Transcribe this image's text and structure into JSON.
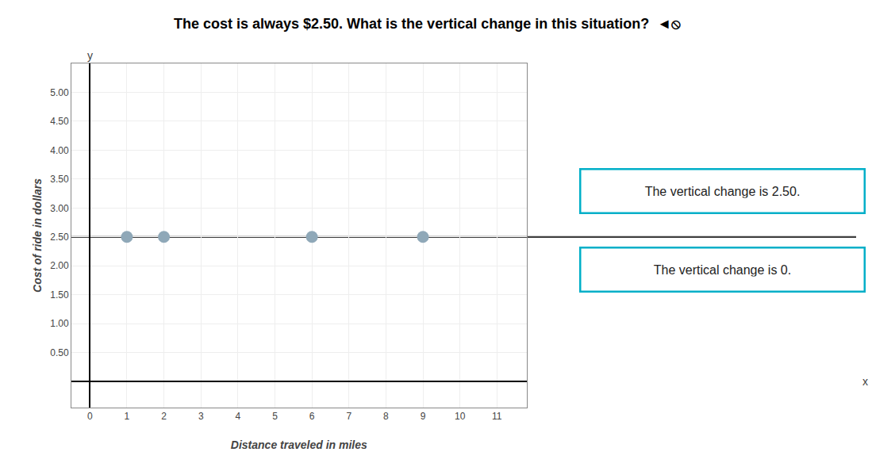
{
  "chart_data": {
    "type": "scatter",
    "title": "The cost is always $2.50. What is the vertical change in this situation?  ◄⦸",
    "x_label": "Distance traveled in miles",
    "y_label": "Cost of ride in dollars",
    "axis_letters": {
      "x": "x",
      "y": "y"
    },
    "x": [
      1,
      2,
      6,
      9
    ],
    "values": [
      2.5,
      2.5,
      2.5,
      2.5
    ],
    "color": "#8fa8b8",
    "marker": "circle",
    "hline": {
      "y": 2.5,
      "color": "#404040"
    },
    "xlim": [
      -0.5,
      11.8
    ],
    "ylim": [
      -0.45,
      5.5
    ],
    "xticks": [
      0,
      1,
      2,
      3,
      4,
      5,
      6,
      7,
      8,
      9,
      10,
      11
    ],
    "yticks": [
      {
        "value": 0.5,
        "label": "0.50"
      },
      {
        "value": 1.0,
        "label": "1.00"
      },
      {
        "value": 1.5,
        "label": "1.50"
      },
      {
        "value": 2.0,
        "label": "2.00"
      },
      {
        "value": 2.5,
        "label": "2.50"
      },
      {
        "value": 3.0,
        "label": "3.00"
      },
      {
        "value": 3.5,
        "label": "3.50"
      },
      {
        "value": 4.0,
        "label": "4.00"
      },
      {
        "value": 4.5,
        "label": "4.50"
      },
      {
        "value": 5.0,
        "label": "5.00"
      }
    ],
    "grid": true,
    "annotations": [
      {
        "text": "The vertical change is 2.50.",
        "color": "#00afc8"
      },
      {
        "text": "The vertical change is 0.",
        "color": "#00afc8"
      }
    ]
  }
}
